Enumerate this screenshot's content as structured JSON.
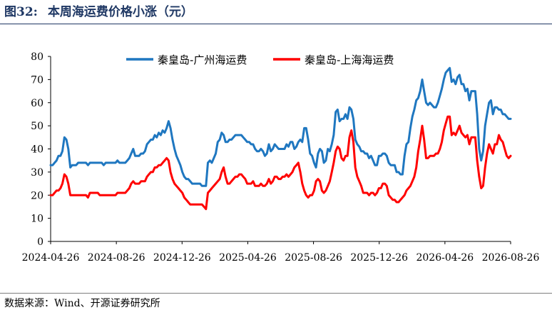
{
  "figure": {
    "number": "图32:",
    "title": "本周海运费价格小涨（元）",
    "source": "数据来源：Wind、开源证券研究所"
  },
  "colors": {
    "series1": "#1F77C0",
    "series2": "#FF0000",
    "title": "#1F3864"
  },
  "chart_data": {
    "type": "line",
    "xlabel": "",
    "ylabel": "",
    "ylim": [
      0,
      80
    ],
    "yticks": [
      0,
      10,
      20,
      30,
      40,
      50,
      60,
      70,
      80
    ],
    "xticks": [
      "2024-04-26",
      "2024-08-26",
      "2024-12-26",
      "2025-04-26",
      "2025-08-26",
      "2025-12-26",
      "2026-04-26",
      "2026-08-26"
    ],
    "grid": false,
    "legend": "top-center",
    "x_unit": "weeks from 2024-04-26",
    "series": [
      {
        "name": "秦皇岛-广州海运费",
        "values": [
          33,
          33,
          34,
          35,
          37,
          37,
          39,
          45,
          44,
          40,
          32,
          33,
          33,
          33,
          34,
          34,
          34,
          34,
          34,
          33,
          34,
          34,
          34,
          34,
          34,
          34,
          34,
          33,
          34,
          34,
          34,
          34,
          34,
          34,
          35,
          34,
          34,
          34,
          34,
          35,
          36,
          38,
          40,
          37,
          37,
          37,
          38,
          38,
          39,
          42,
          43,
          44,
          44,
          46,
          45,
          47,
          46,
          48,
          47,
          49,
          52,
          49,
          44,
          40,
          37,
          35,
          33,
          30,
          28,
          27,
          27,
          26,
          25,
          25,
          25,
          25,
          25,
          24,
          24,
          24,
          34,
          35,
          34,
          36,
          38,
          43,
          44,
          47,
          46,
          43,
          43,
          44,
          44,
          45,
          46,
          46,
          46,
          46,
          45,
          44,
          43,
          43,
          42,
          42,
          40,
          39,
          39,
          40,
          39,
          37,
          38,
          42,
          39,
          40,
          42,
          41,
          40,
          40,
          40,
          40,
          42,
          41,
          43,
          43,
          40,
          41,
          43,
          44,
          43,
          49,
          49,
          44,
          38,
          37,
          34,
          32,
          38,
          40,
          39,
          34,
          35,
          40,
          39,
          42,
          46,
          56,
          57,
          52,
          53,
          53,
          55,
          53,
          58,
          57,
          53,
          44,
          42,
          41,
          39,
          39,
          38,
          38,
          36,
          37,
          35,
          33,
          33,
          37,
          37,
          38,
          38,
          37,
          34,
          33,
          33,
          33,
          30,
          30,
          29,
          29,
          37,
          42,
          43,
          49,
          54,
          57,
          61,
          62,
          65,
          70,
          65,
          60,
          59,
          60,
          59,
          58,
          58,
          60,
          63,
          66,
          70,
          73,
          74,
          75,
          69,
          70,
          68,
          71,
          72,
          68,
          68,
          65,
          66,
          61,
          65,
          65,
          65,
          55,
          40,
          35,
          39,
          50,
          55,
          60,
          61,
          55,
          58,
          58,
          57,
          57,
          55,
          55,
          54,
          53,
          53
        ]
      },
      {
        "name": "秦皇岛-上海海运费",
        "values": [
          20,
          20,
          21,
          22,
          22,
          23,
          25,
          29,
          28,
          25,
          20,
          20,
          20,
          20,
          20,
          20,
          20,
          20,
          20,
          19,
          21,
          21,
          21,
          21,
          21,
          20,
          20,
          20,
          20,
          20,
          20,
          20,
          20,
          20,
          21,
          21,
          21,
          21,
          21,
          22,
          23,
          25,
          26,
          25,
          25,
          25,
          26,
          26,
          26,
          28,
          29,
          30,
          30,
          32,
          32,
          33,
          33,
          34,
          35,
          36,
          35,
          30,
          27,
          25,
          24,
          23,
          22,
          21,
          19,
          18,
          17,
          16,
          16,
          16,
          16,
          16,
          16,
          16,
          15,
          14,
          21,
          22,
          23,
          24,
          25,
          26,
          27,
          30,
          32,
          28,
          25,
          25,
          26,
          27,
          28,
          28,
          29,
          29,
          28,
          27,
          25,
          25,
          25,
          26,
          24,
          24,
          24,
          25,
          24,
          24,
          25,
          27,
          25,
          26,
          28,
          28,
          27,
          27,
          28,
          28,
          29,
          28,
          29,
          30,
          32,
          33,
          34,
          30,
          25,
          22,
          20,
          19,
          20,
          20,
          22,
          26,
          27,
          26,
          22,
          21,
          22,
          24,
          26,
          30,
          34,
          39,
          41,
          40,
          36,
          35,
          37,
          37,
          45,
          48,
          43,
          32,
          28,
          26,
          24,
          21,
          21,
          21,
          20,
          21,
          21,
          20,
          21,
          23,
          23,
          25,
          25,
          24,
          20,
          19,
          18,
          18,
          17,
          17,
          18,
          19,
          20,
          22,
          23,
          24,
          26,
          28,
          32,
          39,
          44,
          50,
          44,
          36,
          36,
          37,
          37,
          37,
          38,
          38,
          40,
          43,
          48,
          51,
          54,
          54,
          46,
          47,
          46,
          48,
          50,
          47,
          46,
          45,
          46,
          42,
          45,
          45,
          45,
          35,
          28,
          23,
          24,
          32,
          38,
          42,
          40,
          38,
          42,
          42,
          46,
          44,
          43,
          40,
          37,
          36,
          37
        ]
      }
    ]
  }
}
